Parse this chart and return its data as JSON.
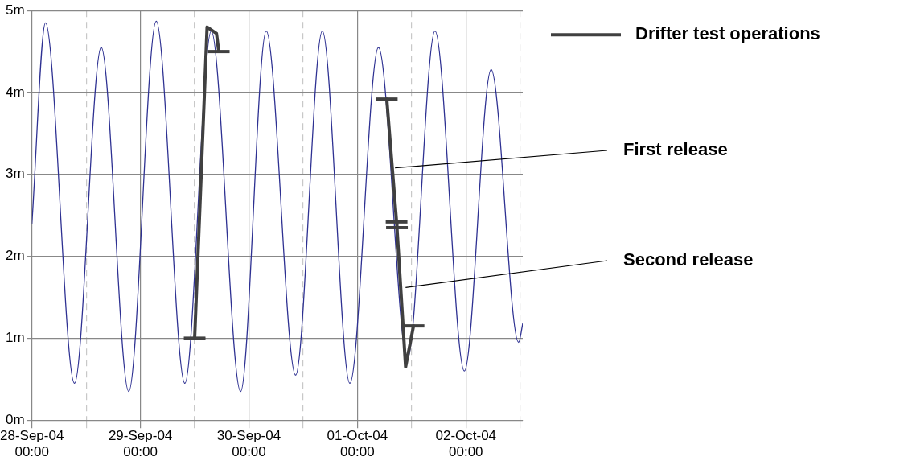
{
  "chart_data": {
    "type": "line",
    "x": [
      "--09-28T00:00",
      "--09-28T03:00",
      "--09-28T09:25",
      "--09-28T15:20",
      "--09-28T21:25",
      "--09-29T03:30",
      "--09-29T09:50",
      "--09-29T15:40",
      "--09-29T22:10",
      "--09-30T03:50",
      "--09-30T10:20",
      "--09-30T16:15",
      "--09-30T22:20",
      "--10-01T04:40",
      "--10-01T11:05",
      "--10-01T17:10",
      "--10-01T23:40",
      "--10-02T05:35",
      "--10-02T11:40",
      "--10-02T12:35"
    ],
    "series": [
      {
        "color": "#2e3192",
        "values": [
          2.4,
          4.85,
          0.45,
          4.55,
          0.35,
          4.87,
          0.45,
          4.75,
          0.35,
          4.75,
          0.55,
          4.75,
          0.45,
          4.55,
          0.75,
          4.75,
          0.6,
          4.28,
          0.95,
          1.18
        ]
      },
      {
        "name": "Drifter test operations",
        "color": "#404040",
        "x": [
          "--09-29T12:00",
          "--09-29T14:45",
          "--09-29T16:50",
          "--09-29T17:20",
          "--09-30T00:00",
          "--10-01T06:30",
          "--10-01T08:40",
          "--10-01T08:45",
          "--10-01T10:40",
          "--10-01T12:25"
        ],
        "values": [
          1.0,
          4.8,
          4.72,
          4.5,
          null,
          3.92,
          2.42,
          2.35,
          0.65,
          1.15
        ],
        "xerrors": [
          0.1,
          null,
          null,
          0.1,
          null,
          0.1,
          0.1,
          0.1,
          null,
          0.1
        ]
      }
    ],
    "xlim": [
      "--09-28T00:00",
      "--10-02T12:35"
    ],
    "xticks": [
      {
        "value": "--09-28T00:00",
        "label": "28-Sep-04 00:00"
      },
      {
        "value": "--09-28T12:00",
        "label": null
      },
      {
        "value": "--09-29T00:00",
        "label": "29-Sep-04 00:00"
      },
      {
        "value": "--09-29T12:00",
        "label": null
      },
      {
        "value": "--09-30T00:00",
        "label": "30-Sep-04 00:00"
      },
      {
        "value": "--09-30T12:00",
        "label": null
      },
      {
        "value": "--10-01T00:00",
        "label": "01-Oct-04 00:00"
      },
      {
        "value": "--10-01T12:00",
        "label": null
      },
      {
        "value": "--10-02T00:00",
        "label": "02-Oct-04 00:00"
      },
      {
        "value": "--10-02T12:00",
        "label": null
      }
    ],
    "ylim": [
      0,
      5
    ],
    "yticks": [
      {
        "value": 0,
        "label": "0m"
      },
      {
        "value": 1,
        "label": "1m"
      },
      {
        "value": 2,
        "label": "2m"
      },
      {
        "value": 3,
        "label": "3m"
      },
      {
        "value": 4,
        "label": "4m"
      },
      {
        "value": 5,
        "label": "5m"
      }
    ],
    "annotations": [
      {
        "text": "First release",
        "x": "--10-01T08:20",
        "y": 3.08
      },
      {
        "text": "Second release",
        "x": "--10-01T10:40",
        "y": 1.62
      }
    ],
    "grid": true,
    "legend": "top right"
  }
}
